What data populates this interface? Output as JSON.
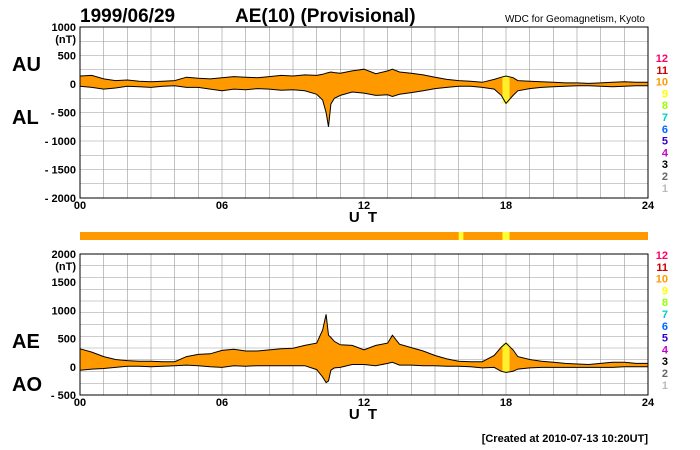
{
  "header": {
    "date": "1999/06/29",
    "title": "AE(10) (Provisional)",
    "credit": "WDC for Geomagnetism, Kyoto"
  },
  "footer": {
    "created": "[Created at 2010-07-13 10:20UT]"
  },
  "colors": {
    "fill": "#ff9900",
    "highlight": "#ffff33",
    "grid": "#999999",
    "line": "#000000"
  },
  "station_legend": {
    "labels": [
      "12",
      "11",
      "10",
      "9",
      "8",
      "7",
      "6",
      "5",
      "4",
      "3",
      "2",
      "1"
    ],
    "colors": [
      "#ff0066",
      "#cc0000",
      "#ff9900",
      "#ffff00",
      "#99ff00",
      "#00cccc",
      "#0066ff",
      "#3300cc",
      "#cc00cc",
      "#000000",
      "#666666",
      "#bbbbbb"
    ]
  },
  "chart_data": [
    {
      "type": "area",
      "name": "au-al",
      "upper_label": "AU",
      "lower_label": "AL",
      "unit": "(nT)",
      "xlabel": "U T",
      "xlim": [
        0,
        24
      ],
      "xticks": [
        0,
        6,
        12,
        18,
        24
      ],
      "xtick_labels": [
        "00",
        "06",
        "12",
        "18",
        "24"
      ],
      "ylim": [
        -2000,
        1000
      ],
      "yticks": [
        1000,
        500,
        0,
        -500,
        -1000,
        -1500,
        -2000
      ],
      "ytick_labels": [
        "1000",
        "500",
        "0",
        "- 500",
        "- 1000",
        "- 1500",
        "- 2000"
      ],
      "grid": true,
      "x": [
        0,
        0.5,
        1,
        1.5,
        2,
        2.5,
        3,
        3.5,
        4,
        4.5,
        5,
        5.5,
        6,
        6.5,
        7,
        7.5,
        8,
        8.5,
        9,
        9.5,
        10,
        10.25,
        10.4,
        10.5,
        10.6,
        10.75,
        11,
        11.5,
        12,
        12.5,
        13,
        13.2,
        13.5,
        14,
        14.5,
        15,
        15.5,
        16,
        16.5,
        17,
        17.5,
        17.8,
        18,
        18.3,
        18.5,
        19,
        19.5,
        20,
        20.5,
        21,
        21.5,
        22,
        22.5,
        23,
        23.5,
        24
      ],
      "series": [
        {
          "name": "AU",
          "values": [
            140,
            150,
            90,
            60,
            70,
            50,
            40,
            50,
            60,
            120,
            100,
            90,
            110,
            130,
            120,
            110,
            130,
            150,
            140,
            160,
            150,
            170,
            190,
            200,
            210,
            200,
            190,
            230,
            260,
            180,
            230,
            260,
            210,
            190,
            160,
            120,
            80,
            60,
            50,
            30,
            80,
            120,
            140,
            110,
            60,
            50,
            40,
            30,
            20,
            20,
            10,
            20,
            30,
            40,
            30,
            30
          ]
        },
        {
          "name": "AL",
          "values": [
            -40,
            -60,
            -90,
            -70,
            -40,
            -50,
            -60,
            -40,
            -30,
            -60,
            -60,
            -90,
            -120,
            -90,
            -100,
            -80,
            -90,
            -110,
            -100,
            -120,
            -180,
            -280,
            -500,
            -750,
            -350,
            -250,
            -200,
            -140,
            -160,
            -200,
            -190,
            -220,
            -180,
            -150,
            -120,
            -80,
            -60,
            -40,
            -40,
            -60,
            -90,
            -200,
            -340,
            -200,
            -120,
            -80,
            -60,
            -50,
            -40,
            -30,
            -30,
            -40,
            -50,
            -40,
            -30,
            -30
          ]
        }
      ]
    },
    {
      "type": "area",
      "name": "ae-ao",
      "upper_label": "AE",
      "lower_label": "AO",
      "unit": "(nT)",
      "xlabel": "U T",
      "xlim": [
        0,
        24
      ],
      "xticks": [
        0,
        6,
        12,
        18,
        24
      ],
      "xtick_labels": [
        "00",
        "06",
        "12",
        "18",
        "24"
      ],
      "ylim": [
        -500,
        2000
      ],
      "yticks": [
        2000,
        1500,
        1000,
        500,
        0,
        -500
      ],
      "ytick_labels": [
        "2000",
        "1500",
        "1000",
        "500",
        "0",
        "- 500"
      ],
      "grid": true,
      "x": [
        0,
        0.5,
        1,
        1.5,
        2,
        2.5,
        3,
        3.5,
        4,
        4.5,
        5,
        5.5,
        6,
        6.5,
        7,
        7.5,
        8,
        8.5,
        9,
        9.5,
        10,
        10.25,
        10.4,
        10.5,
        10.6,
        10.75,
        11,
        11.5,
        12,
        12.5,
        13,
        13.2,
        13.5,
        14,
        14.5,
        15,
        15.5,
        16,
        16.5,
        17,
        17.5,
        17.8,
        18,
        18.3,
        18.5,
        19,
        19.5,
        20,
        20.5,
        21,
        21.5,
        22,
        22.5,
        23,
        23.5,
        24
      ],
      "series": [
        {
          "name": "AE",
          "values": [
            320,
            260,
            180,
            130,
            110,
            100,
            100,
            90,
            90,
            180,
            220,
            230,
            290,
            310,
            280,
            280,
            300,
            320,
            330,
            380,
            420,
            650,
            930,
            560,
            520,
            450,
            390,
            380,
            300,
            380,
            420,
            560,
            400,
            340,
            280,
            200,
            140,
            100,
            90,
            90,
            200,
            350,
            420,
            300,
            180,
            130,
            100,
            80,
            60,
            50,
            40,
            60,
            80,
            80,
            60,
            60
          ]
        },
        {
          "name": "AO",
          "values": [
            -60,
            -40,
            -30,
            -10,
            10,
            10,
            0,
            10,
            20,
            30,
            20,
            0,
            -10,
            20,
            10,
            20,
            20,
            20,
            20,
            20,
            -50,
            -180,
            -280,
            -250,
            -60,
            -20,
            -10,
            40,
            40,
            20,
            60,
            80,
            30,
            30,
            20,
            20,
            10,
            10,
            0,
            -20,
            -10,
            -80,
            -100,
            -80,
            -40,
            -20,
            -10,
            -10,
            -10,
            -10,
            -10,
            -10,
            -10,
            0,
            0,
            0
          ]
        }
      ]
    }
  ],
  "coverage_bar": {
    "xlim": [
      0,
      24
    ],
    "highlights": [
      [
        16,
        16.2
      ],
      [
        17.85,
        18.15
      ]
    ]
  },
  "highlight_bands": [
    [
      17.85,
      18.15
    ]
  ]
}
